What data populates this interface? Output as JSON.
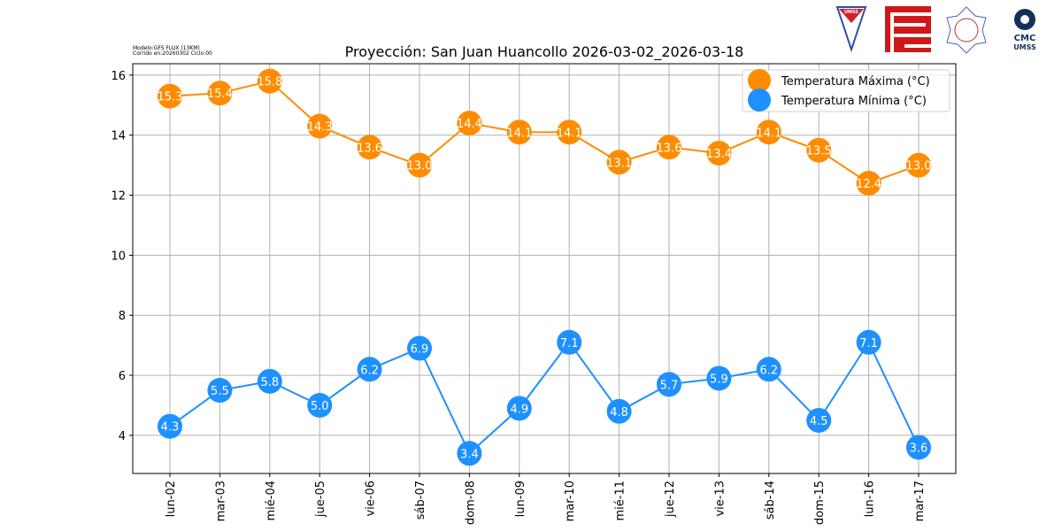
{
  "meta": {
    "line1": "Modelo:GFS FLUX (13KM)",
    "line2": "Corrido en:20260302 Ciclo:00"
  },
  "logos": {
    "umss": "UMSS",
    "cmc1": "CMC",
    "cmc2": "UMSS"
  },
  "chart_data": {
    "type": "line",
    "title": "Proyección: San Juan Huancollo 2026-03-02_2026-03-18",
    "categories": [
      "lun-02",
      "mar-03",
      "mié-04",
      "jue-05",
      "vie-06",
      "sáb-07",
      "dom-08",
      "lun-09",
      "mar-10",
      "mié-11",
      "jue-12",
      "vie-13",
      "sáb-14",
      "dom-15",
      "lun-16",
      "mar-17"
    ],
    "series": [
      {
        "name": "Temperatura Máxima  (°C)",
        "color": "#ff8c00",
        "values": [
          15.3,
          15.4,
          15.8,
          14.3,
          13.6,
          13.0,
          14.4,
          14.1,
          14.1,
          13.1,
          13.6,
          13.4,
          14.1,
          13.5,
          12.4,
          13.0
        ]
      },
      {
        "name": "Temperatura Mínima  (°C)",
        "color": "#1e90ff",
        "values": [
          4.3,
          5.5,
          5.8,
          5.0,
          6.2,
          6.9,
          3.4,
          4.9,
          7.1,
          4.8,
          5.7,
          5.9,
          6.2,
          4.5,
          7.1,
          3.6
        ]
      }
    ],
    "yticks": [
      4,
      6,
      8,
      10,
      12,
      14,
      16
    ],
    "ylim": [
      2.73,
      16.38
    ],
    "grid": true,
    "legend": "top-right",
    "xlabel": "",
    "ylabel": ""
  }
}
